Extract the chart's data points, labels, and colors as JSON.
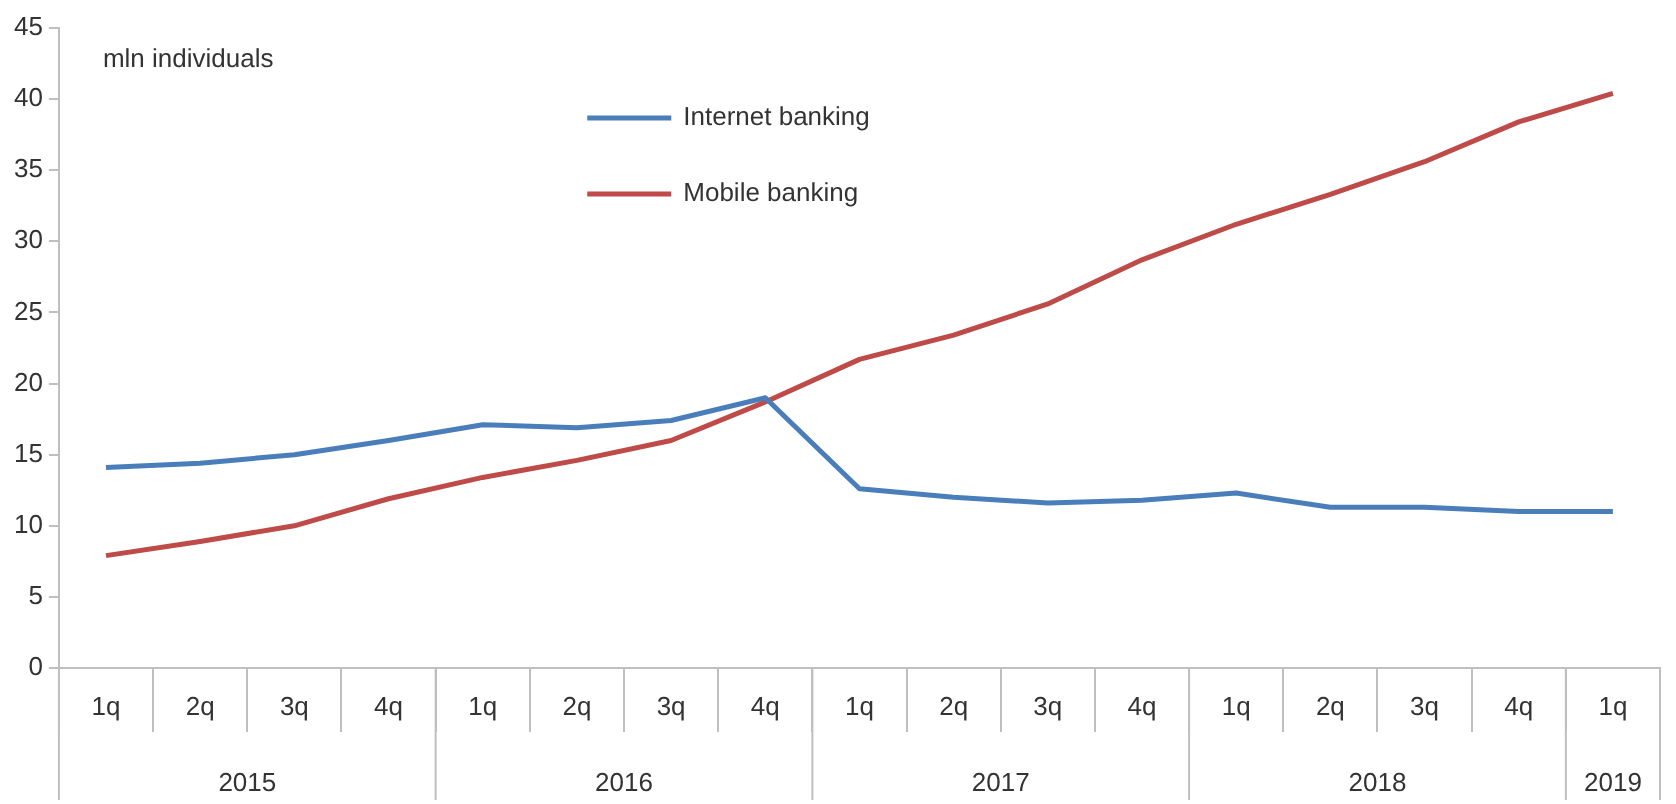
{
  "chart_data": {
    "type": "line",
    "ylabel": "mln individuals",
    "categories": [
      "1q",
      "2q",
      "3q",
      "4q",
      "1q",
      "2q",
      "3q",
      "4q",
      "1q",
      "2q",
      "3q",
      "4q",
      "1q",
      "2q",
      "3q",
      "4q",
      "1q"
    ],
    "annotations": [
      "2015",
      "2016",
      "2017",
      "2018",
      "2019"
    ],
    "series": [
      {
        "name": "Internet banking",
        "color": "#4a7ebb",
        "values": [
          14.1,
          14.4,
          15,
          16,
          17.1,
          16.9,
          17.4,
          19,
          12.6,
          12,
          11.6,
          11.8,
          12.3,
          11.3,
          11.3,
          11,
          11
        ]
      },
      {
        "name": "Mobile banking",
        "color": "#be4b48",
        "values": [
          7.9,
          8.9,
          10,
          11.9,
          13.4,
          14.6,
          16,
          18.7,
          21.7,
          23.4,
          25.6,
          28.7,
          31.2,
          33.3,
          35.6,
          38.4,
          40.4
        ]
      }
    ],
    "ylim": [
      0,
      45
    ],
    "yticks": [
      0,
      5,
      10,
      15,
      20,
      25,
      30,
      35,
      40,
      45
    ],
    "grid": false,
    "legend": "top",
    "marker": "none",
    "line_style": "solid"
  }
}
